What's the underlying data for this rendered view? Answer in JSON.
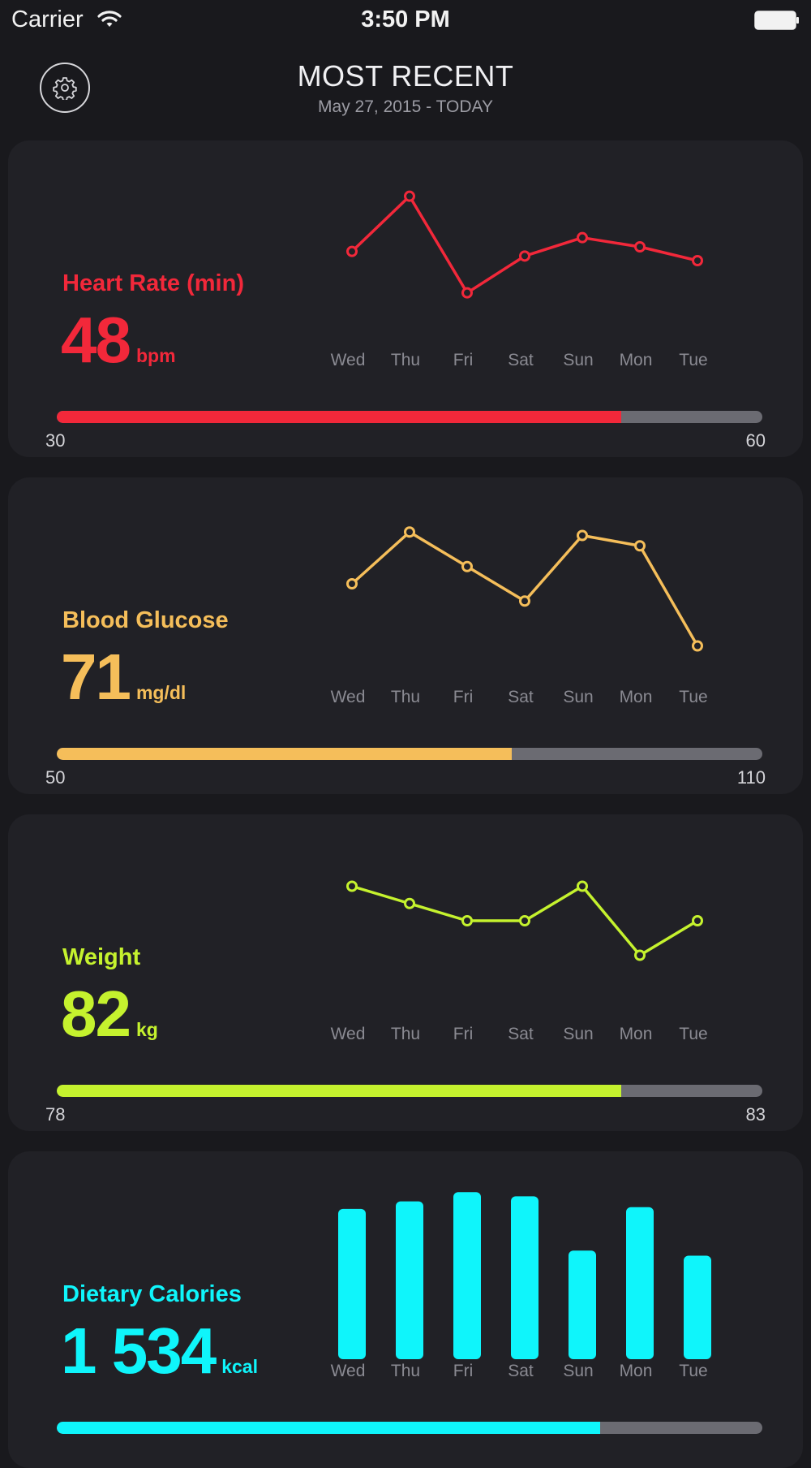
{
  "status_bar": {
    "carrier": "Carrier",
    "time": "3:50 PM"
  },
  "header": {
    "title": "MOST RECENT",
    "subtitle": "May 27, 2015 - TODAY"
  },
  "cards": [
    {
      "title": "Heart Rate (min)",
      "value": "48",
      "unit": "bpm",
      "color": "#f2283a",
      "range_min": "30",
      "range_max": "60",
      "progress_fraction": 0.8,
      "chart_data": {
        "type": "line",
        "categories": [
          "Wed",
          "Thu",
          "Fri",
          "Sat",
          "Sun",
          "Mon",
          "Tue"
        ],
        "series": [
          {
            "values": [
              52,
              58,
              47.5,
              51.5,
              53.5,
              52.5,
              51
            ]
          }
        ],
        "ylim": [
          45,
          60
        ]
      }
    },
    {
      "title": "Blood Glucose",
      "value": "71",
      "unit": "mg/dl",
      "color": "#f5be5a",
      "range_min": "50",
      "range_max": "110",
      "progress_fraction": 0.645,
      "chart_data": {
        "type": "line",
        "categories": [
          "Wed",
          "Thu",
          "Fri",
          "Sat",
          "Sun",
          "Mon",
          "Tue"
        ],
        "series": [
          {
            "values": [
              85,
              100,
              90,
              80,
              99,
              96,
              67
            ]
          }
        ],
        "ylim": [
          65,
          105
        ]
      }
    },
    {
      "title": "Weight",
      "value": "82",
      "unit": "kg",
      "color": "#c5f22e",
      "range_min": "78",
      "range_max": "83",
      "progress_fraction": 0.8,
      "chart_data": {
        "type": "line",
        "categories": [
          "Wed",
          "Thu",
          "Fri",
          "Sat",
          "Sun",
          "Mon",
          "Tue"
        ],
        "series": [
          {
            "values": [
              83,
              82.5,
              82,
              82,
              83,
              81,
              82
            ]
          }
        ],
        "ylim": [
          80,
          84
        ]
      }
    },
    {
      "title": "Dietary Calories",
      "value": "1 534",
      "unit": "kcal",
      "color": "#0ff5fb",
      "range_min": "",
      "range_max": "",
      "progress_fraction": 0.77,
      "chart_data": {
        "type": "bar",
        "categories": [
          "Wed",
          "Thu",
          "Fri",
          "Sat",
          "Sun",
          "Mon",
          "Tue"
        ],
        "values": [
          1800,
          1890,
          2000,
          1950,
          1300,
          1820,
          1240
        ],
        "ylim": [
          0,
          2100
        ]
      }
    }
  ]
}
